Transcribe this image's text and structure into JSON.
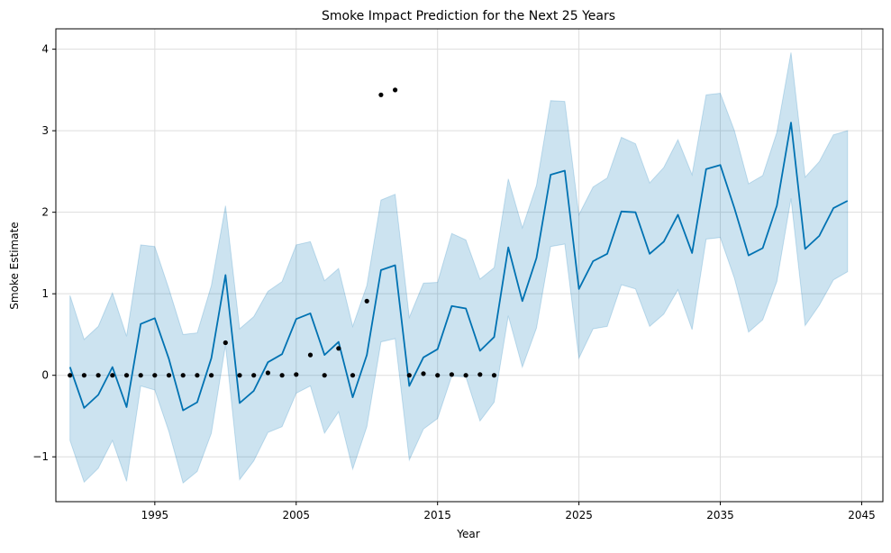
{
  "chart_data": {
    "type": "line",
    "title": "Smoke Impact Prediction for the Next 25 Years",
    "xlabel": "Year",
    "ylabel": "Smoke Estimate",
    "xlim": [
      1988,
      2046.5
    ],
    "ylim": [
      -1.55,
      4.25
    ],
    "x_ticks": [
      1995,
      2005,
      2015,
      2025,
      2035,
      2045
    ],
    "y_ticks": [
      -1,
      0,
      1,
      2,
      3,
      4
    ],
    "y_tick_labels": [
      "−1",
      "0",
      "1",
      "2",
      "3",
      "4"
    ],
    "grid": true,
    "forecast": {
      "years": [
        1989,
        1990,
        1991,
        1992,
        1993,
        1994,
        1995,
        1996,
        1997,
        1998,
        1999,
        2000,
        2001,
        2002,
        2003,
        2004,
        2005,
        2006,
        2007,
        2008,
        2009,
        2010,
        2011,
        2012,
        2013,
        2014,
        2015,
        2016,
        2017,
        2018,
        2019,
        2020,
        2021,
        2022,
        2023,
        2024,
        2025,
        2026,
        2027,
        2028,
        2029,
        2030,
        2031,
        2032,
        2033,
        2034,
        2035,
        2036,
        2037,
        2038,
        2039,
        2040,
        2041,
        2042,
        2043,
        2044
      ],
      "yhat": [
        0.1,
        -0.4,
        -0.24,
        0.1,
        -0.39,
        0.63,
        0.7,
        0.2,
        -0.43,
        -0.33,
        0.21,
        1.23,
        -0.34,
        -0.19,
        0.16,
        0.26,
        0.69,
        0.76,
        0.25,
        0.41,
        -0.27,
        0.25,
        1.29,
        1.35,
        -0.13,
        0.22,
        0.32,
        0.85,
        0.82,
        0.3,
        0.47,
        1.57,
        0.91,
        1.44,
        2.46,
        2.51,
        1.06,
        1.4,
        1.49,
        2.01,
        2.0,
        1.49,
        1.64,
        1.97,
        1.5,
        2.53,
        2.58,
        2.05,
        1.47,
        1.56,
        2.08,
        3.1,
        1.55,
        1.71,
        2.05,
        2.14
      ],
      "yhat_upper": [
        0.98,
        0.44,
        0.6,
        1.01,
        0.48,
        1.6,
        1.58,
        1.06,
        0.5,
        0.52,
        1.1,
        2.08,
        0.57,
        0.72,
        1.03,
        1.15,
        1.6,
        1.64,
        1.16,
        1.31,
        0.6,
        1.1,
        2.15,
        2.22,
        0.71,
        1.13,
        1.14,
        1.74,
        1.66,
        1.18,
        1.32,
        2.41,
        1.81,
        2.33,
        3.37,
        3.36,
        1.97,
        2.31,
        2.42,
        2.92,
        2.84,
        2.36,
        2.55,
        2.89,
        2.46,
        3.44,
        3.46,
        3.0,
        2.35,
        2.45,
        2.98,
        3.96,
        2.43,
        2.62,
        2.95,
        3.0
      ],
      "yhat_lower": [
        -0.8,
        -1.31,
        -1.14,
        -0.8,
        -1.3,
        -0.13,
        -0.18,
        -0.69,
        -1.32,
        -1.18,
        -0.71,
        0.37,
        -1.28,
        -1.05,
        -0.7,
        -0.63,
        -0.22,
        -0.13,
        -0.71,
        -0.45,
        -1.15,
        -0.63,
        0.41,
        0.45,
        -1.04,
        -0.66,
        -0.53,
        -0.01,
        -0.02,
        -0.56,
        -0.33,
        0.73,
        0.1,
        0.58,
        1.58,
        1.61,
        0.21,
        0.57,
        0.6,
        1.11,
        1.06,
        0.6,
        0.75,
        1.05,
        0.56,
        1.67,
        1.69,
        1.19,
        0.53,
        0.68,
        1.15,
        2.17,
        0.61,
        0.86,
        1.17,
        1.27
      ]
    },
    "observed": {
      "years": [
        1989,
        1990,
        1991,
        1992,
        1993,
        1994,
        1995,
        1996,
        1997,
        1998,
        1999,
        2000,
        2001,
        2002,
        2003,
        2004,
        2005,
        2006,
        2007,
        2008,
        2009,
        2010,
        2011,
        2012,
        2013,
        2014,
        2015,
        2016,
        2017,
        2018,
        2019
      ],
      "values": [
        0.0,
        0.0,
        0.0,
        0.0,
        0.0,
        0.0,
        0.0,
        0.0,
        0.0,
        0.0,
        0.0,
        0.4,
        0.0,
        0.0,
        0.03,
        0.0,
        0.01,
        0.25,
        0.0,
        0.33,
        0.0,
        0.91,
        3.44,
        3.5,
        0.0,
        0.02,
        0.0,
        0.01,
        0.0,
        0.01,
        0.0
      ]
    },
    "colors": {
      "line": "#0072b2",
      "band": "#0072b2",
      "points": "#000000",
      "grid": "#dddddd"
    }
  }
}
